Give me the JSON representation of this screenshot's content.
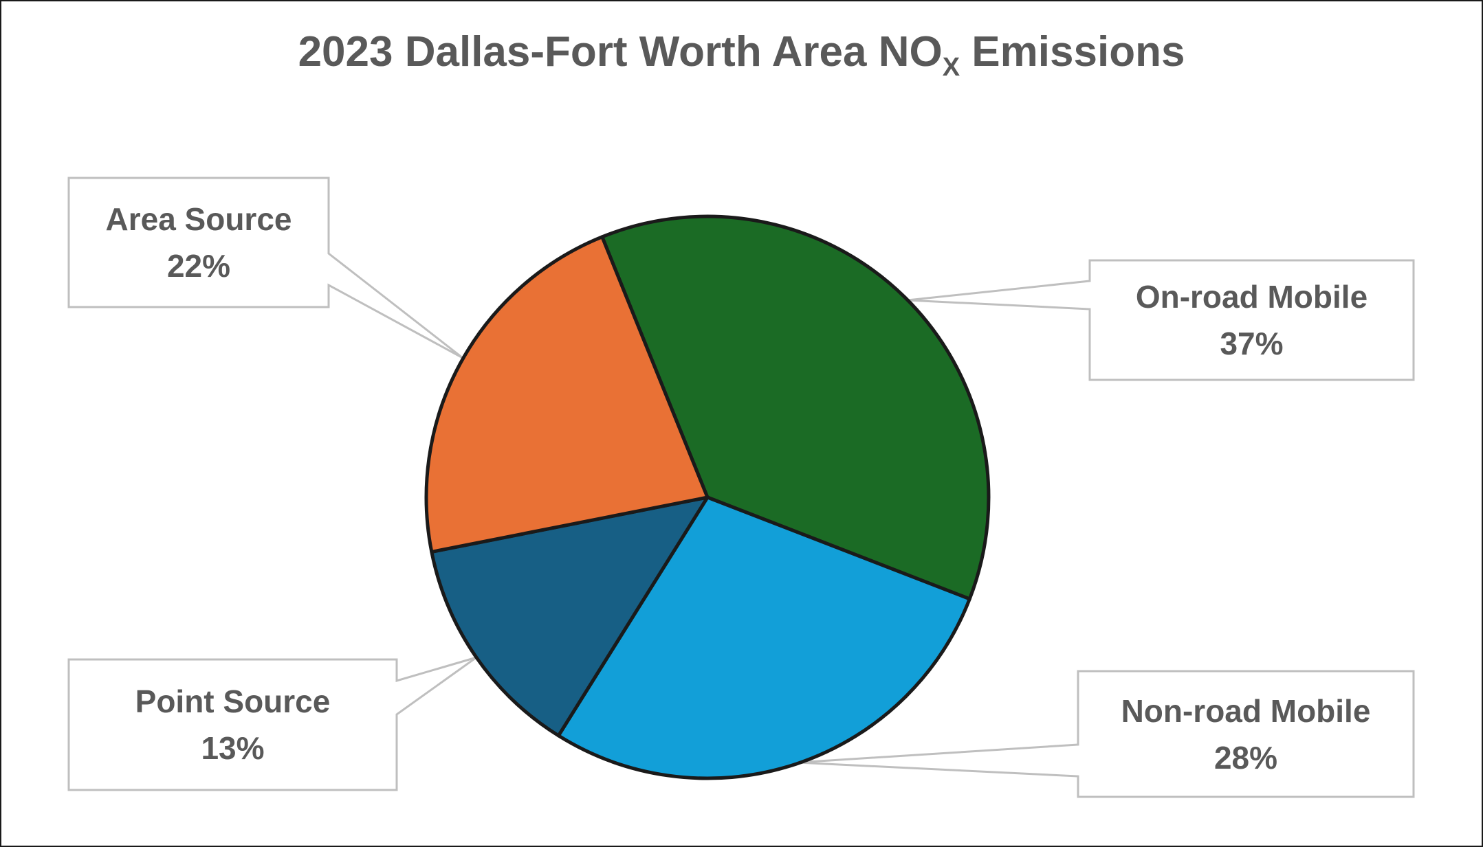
{
  "title": {
    "main": "2023 Dallas-Fort Worth Area NO",
    "subscript": "X",
    "suffix": " Emissions"
  },
  "colors": {
    "text": "#595959",
    "callout_border": "#bfbfbf",
    "slice_outline": "#1a1a1a"
  },
  "slices": [
    {
      "label": "On-road Mobile",
      "percent_label": "37%",
      "value": 37,
      "color": "#1b6b25"
    },
    {
      "label": "Non-road Mobile",
      "percent_label": "28%",
      "value": 28,
      "color": "#129fd8"
    },
    {
      "label": "Point Source",
      "percent_label": "13%",
      "value": 13,
      "color": "#175f85"
    },
    {
      "label": "Area Source",
      "percent_label": "22%",
      "value": 22,
      "color": "#e97135"
    }
  ],
  "chart_data": {
    "type": "pie",
    "title": "2023 Dallas-Fort Worth Area NOx Emissions",
    "categories": [
      "On-road Mobile",
      "Non-road Mobile",
      "Point Source",
      "Area Source"
    ],
    "values": [
      37,
      28,
      13,
      22
    ],
    "unit": "%",
    "colors": [
      "#1b6b25",
      "#129fd8",
      "#175f85",
      "#e97135"
    ],
    "legend": "none (data labels with callouts)",
    "start_angle_deg": -22,
    "direction": "clockwise"
  }
}
